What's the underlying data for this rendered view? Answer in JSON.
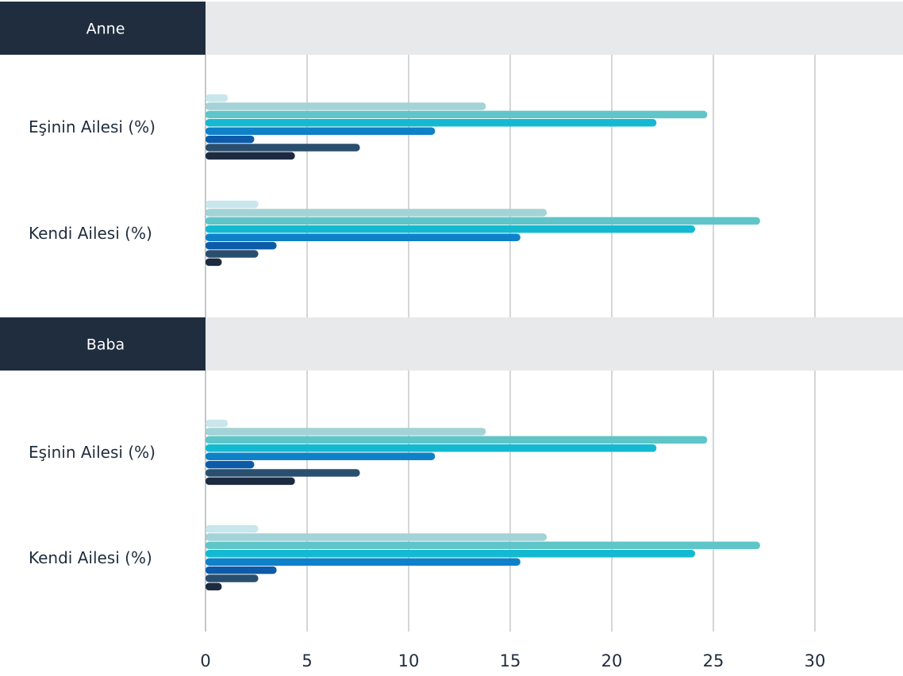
{
  "chart_data": {
    "type": "bar",
    "orientation": "horizontal",
    "x_ticks": [
      0,
      5,
      10,
      15,
      20,
      25,
      30
    ],
    "xlim": [
      0,
      34
    ],
    "grid": true,
    "legend": "none",
    "series_colors": [
      "#c9e6ec",
      "#a3d3d6",
      "#5fc5c8",
      "#14b9d1",
      "#0e81c8",
      "#0d5ba8",
      "#2a4f6e",
      "#1c2b40"
    ],
    "panels": [
      {
        "title": "Anne",
        "categories": [
          {
            "label": "Eşinin Ailesi (%)",
            "values": [
              1.1,
              13.8,
              24.7,
              22.2,
              11.3,
              2.4,
              7.6,
              4.4
            ]
          },
          {
            "label": "Kendi Ailesi (%)",
            "values": [
              2.6,
              16.8,
              27.3,
              24.1,
              15.5,
              3.5,
              2.6,
              0.8
            ]
          }
        ]
      },
      {
        "title": "Baba",
        "categories": [
          {
            "label": "Eşinin Ailesi (%)",
            "values": [
              1.1,
              13.8,
              24.7,
              22.2,
              11.3,
              2.4,
              7.6,
              4.4
            ]
          },
          {
            "label": "Kendi Ailesi (%)",
            "values": [
              2.6,
              16.8,
              27.3,
              24.1,
              15.5,
              3.5,
              2.6,
              0.8
            ]
          }
        ]
      }
    ]
  }
}
